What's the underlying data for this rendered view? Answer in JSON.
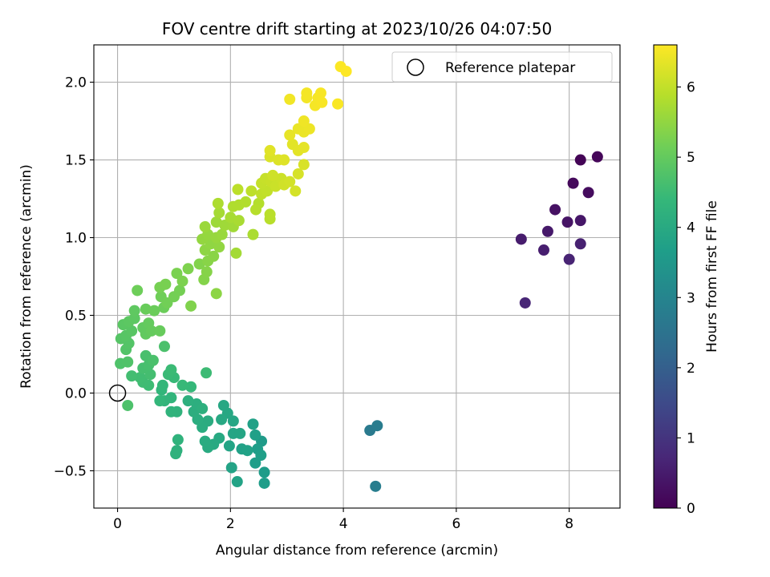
{
  "chart_data": {
    "type": "scatter",
    "title": "FOV centre drift starting at 2023/10/26 04:07:50",
    "xlabel": "Angular distance from reference (arcmin)",
    "ylabel": "Rotation from reference (arcmin)",
    "xlim": [
      -0.42,
      8.9
    ],
    "ylim": [
      -0.74,
      2.24
    ],
    "xticks": [
      0,
      2,
      4,
      6,
      8
    ],
    "xtick_labels": [
      "0",
      "2",
      "4",
      "6",
      "8"
    ],
    "yticks": [
      -0.5,
      0.0,
      0.5,
      1.0,
      1.5,
      2.0
    ],
    "ytick_labels": [
      "−0.5",
      "0.0",
      "0.5",
      "1.0",
      "1.5",
      "2.0"
    ],
    "grid": true,
    "legend": {
      "position": "top-right",
      "entries": [
        "Reference platepar"
      ]
    },
    "reference_point": {
      "name": "Reference platepar",
      "x": 0.0,
      "y": 0.0,
      "marker": "open-circle"
    },
    "colorbar": {
      "label": "Hours from first FF file",
      "range": [
        0,
        6.6
      ],
      "ticks": [
        0,
        1,
        2,
        3,
        4,
        5,
        6
      ],
      "tick_labels": [
        "0",
        "1",
        "2",
        "3",
        "4",
        "5",
        "6"
      ],
      "colormap": "viridis",
      "stops": [
        "#440154",
        "#482878",
        "#3e4989",
        "#31688e",
        "#26828e",
        "#1f9e89",
        "#35b779",
        "#6ece58",
        "#b5de2b",
        "#fde725"
      ]
    },
    "points": [
      {
        "x": 8.2,
        "y": 1.5,
        "c": 0.05
      },
      {
        "x": 8.5,
        "y": 1.52,
        "c": 0.1
      },
      {
        "x": 8.07,
        "y": 1.35,
        "c": 0.15
      },
      {
        "x": 8.34,
        "y": 1.29,
        "c": 0.2
      },
      {
        "x": 7.75,
        "y": 1.18,
        "c": 0.3
      },
      {
        "x": 7.97,
        "y": 1.1,
        "c": 0.35
      },
      {
        "x": 8.2,
        "y": 1.11,
        "c": 0.4
      },
      {
        "x": 7.62,
        "y": 1.04,
        "c": 0.45
      },
      {
        "x": 7.15,
        "y": 0.99,
        "c": 0.5
      },
      {
        "x": 7.55,
        "y": 0.92,
        "c": 0.55
      },
      {
        "x": 8.2,
        "y": 0.96,
        "c": 0.6
      },
      {
        "x": 8.0,
        "y": 0.86,
        "c": 0.65
      },
      {
        "x": 7.22,
        "y": 0.58,
        "c": 0.7
      },
      {
        "x": 4.47,
        "y": -0.24,
        "c": 2.7
      },
      {
        "x": 4.6,
        "y": -0.21,
        "c": 2.75
      },
      {
        "x": 4.57,
        "y": -0.6,
        "c": 2.8
      },
      {
        "x": 2.55,
        "y": -0.31,
        "c": 3.6
      },
      {
        "x": 2.6,
        "y": -0.51,
        "c": 3.62
      },
      {
        "x": 2.6,
        "y": -0.58,
        "c": 3.64
      },
      {
        "x": 2.44,
        "y": -0.45,
        "c": 3.66
      },
      {
        "x": 2.48,
        "y": -0.36,
        "c": 3.68
      },
      {
        "x": 2.54,
        "y": -0.4,
        "c": 3.7
      },
      {
        "x": 2.44,
        "y": -0.27,
        "c": 3.72
      },
      {
        "x": 2.4,
        "y": -0.2,
        "c": 3.74
      },
      {
        "x": 2.2,
        "y": -0.36,
        "c": 3.76
      },
      {
        "x": 2.3,
        "y": -0.37,
        "c": 3.78
      },
      {
        "x": 2.12,
        "y": -0.57,
        "c": 3.8
      },
      {
        "x": 2.02,
        "y": -0.48,
        "c": 3.82
      },
      {
        "x": 1.98,
        "y": -0.34,
        "c": 3.84
      },
      {
        "x": 2.05,
        "y": -0.26,
        "c": 3.86
      },
      {
        "x": 2.17,
        "y": -0.26,
        "c": 3.88
      },
      {
        "x": 2.05,
        "y": -0.18,
        "c": 3.9
      },
      {
        "x": 1.95,
        "y": -0.13,
        "c": 3.92
      },
      {
        "x": 1.88,
        "y": -0.08,
        "c": 3.94
      },
      {
        "x": 1.84,
        "y": -0.17,
        "c": 3.96
      },
      {
        "x": 1.8,
        "y": -0.29,
        "c": 3.98
      },
      {
        "x": 1.7,
        "y": -0.33,
        "c": 4.0
      },
      {
        "x": 1.6,
        "y": -0.35,
        "c": 4.02
      },
      {
        "x": 1.55,
        "y": -0.31,
        "c": 4.04
      },
      {
        "x": 1.6,
        "y": -0.18,
        "c": 4.06
      },
      {
        "x": 1.5,
        "y": -0.22,
        "c": 4.08
      },
      {
        "x": 1.42,
        "y": -0.17,
        "c": 4.1
      },
      {
        "x": 1.35,
        "y": -0.12,
        "c": 4.12
      },
      {
        "x": 1.4,
        "y": -0.07,
        "c": 4.14
      },
      {
        "x": 1.5,
        "y": -0.1,
        "c": 4.16
      },
      {
        "x": 1.25,
        "y": -0.05,
        "c": 4.18
      },
      {
        "x": 1.05,
        "y": -0.37,
        "c": 4.2
      },
      {
        "x": 1.03,
        "y": -0.39,
        "c": 4.22
      },
      {
        "x": 1.07,
        "y": -0.3,
        "c": 4.24
      },
      {
        "x": 1.05,
        "y": -0.12,
        "c": 4.26
      },
      {
        "x": 0.95,
        "y": -0.12,
        "c": 4.28
      },
      {
        "x": 0.95,
        "y": -0.03,
        "c": 4.3
      },
      {
        "x": 0.83,
        "y": -0.05,
        "c": 4.32
      },
      {
        "x": 0.78,
        "y": 0.02,
        "c": 4.34
      },
      {
        "x": 0.75,
        "y": -0.05,
        "c": 4.36
      },
      {
        "x": 0.8,
        "y": 0.05,
        "c": 4.38
      },
      {
        "x": 1.3,
        "y": 0.04,
        "c": 4.4
      },
      {
        "x": 1.15,
        "y": 0.05,
        "c": 4.42
      },
      {
        "x": 1.0,
        "y": 0.1,
        "c": 4.44
      },
      {
        "x": 0.9,
        "y": 0.12,
        "c": 4.46
      },
      {
        "x": 0.95,
        "y": 0.15,
        "c": 4.48
      },
      {
        "x": 1.57,
        "y": 0.13,
        "c": 4.5
      },
      {
        "x": 0.55,
        "y": 0.05,
        "c": 4.52
      },
      {
        "x": 0.45,
        "y": 0.07,
        "c": 4.54
      },
      {
        "x": 0.4,
        "y": 0.1,
        "c": 4.56
      },
      {
        "x": 0.25,
        "y": 0.11,
        "c": 4.58
      },
      {
        "x": 0.58,
        "y": 0.12,
        "c": 4.6
      },
      {
        "x": 0.45,
        "y": 0.16,
        "c": 4.62
      },
      {
        "x": 0.55,
        "y": 0.18,
        "c": 4.64
      },
      {
        "x": 0.5,
        "y": 0.24,
        "c": 4.66
      },
      {
        "x": 0.63,
        "y": 0.21,
        "c": 4.68
      },
      {
        "x": 0.83,
        "y": 0.3,
        "c": 4.7
      },
      {
        "x": 0.18,
        "y": -0.08,
        "c": 4.72
      },
      {
        "x": 0.05,
        "y": 0.19,
        "c": 4.74
      },
      {
        "x": 0.18,
        "y": 0.2,
        "c": 4.76
      },
      {
        "x": 0.15,
        "y": 0.28,
        "c": 4.78
      },
      {
        "x": 0.2,
        "y": 0.32,
        "c": 4.8
      },
      {
        "x": 0.06,
        "y": 0.35,
        "c": 4.82
      },
      {
        "x": 0.15,
        "y": 0.37,
        "c": 4.84
      },
      {
        "x": 0.25,
        "y": 0.4,
        "c": 4.86
      },
      {
        "x": 0.1,
        "y": 0.44,
        "c": 4.88
      },
      {
        "x": 0.2,
        "y": 0.46,
        "c": 4.9
      },
      {
        "x": 0.3,
        "y": 0.48,
        "c": 4.92
      },
      {
        "x": 0.3,
        "y": 0.53,
        "c": 4.94
      },
      {
        "x": 0.45,
        "y": 0.42,
        "c": 4.96
      },
      {
        "x": 0.5,
        "y": 0.38,
        "c": 4.98
      },
      {
        "x": 0.55,
        "y": 0.45,
        "c": 5.0
      },
      {
        "x": 0.6,
        "y": 0.4,
        "c": 5.02
      },
      {
        "x": 0.75,
        "y": 0.4,
        "c": 5.04
      },
      {
        "x": 0.5,
        "y": 0.54,
        "c": 5.06
      },
      {
        "x": 0.65,
        "y": 0.53,
        "c": 5.08
      },
      {
        "x": 0.82,
        "y": 0.55,
        "c": 5.1
      },
      {
        "x": 0.35,
        "y": 0.66,
        "c": 5.12
      },
      {
        "x": 0.77,
        "y": 0.62,
        "c": 5.14
      },
      {
        "x": 0.88,
        "y": 0.58,
        "c": 5.16
      },
      {
        "x": 1.0,
        "y": 0.62,
        "c": 5.18
      },
      {
        "x": 1.1,
        "y": 0.66,
        "c": 5.2
      },
      {
        "x": 0.75,
        "y": 0.68,
        "c": 5.22
      },
      {
        "x": 0.85,
        "y": 0.7,
        "c": 5.24
      },
      {
        "x": 1.05,
        "y": 0.77,
        "c": 5.26
      },
      {
        "x": 1.15,
        "y": 0.72,
        "c": 5.28
      },
      {
        "x": 1.25,
        "y": 0.8,
        "c": 5.3
      },
      {
        "x": 1.3,
        "y": 0.56,
        "c": 5.32
      },
      {
        "x": 1.45,
        "y": 0.83,
        "c": 5.34
      },
      {
        "x": 1.53,
        "y": 0.73,
        "c": 5.36
      },
      {
        "x": 1.58,
        "y": 0.78,
        "c": 5.38
      },
      {
        "x": 1.6,
        "y": 0.85,
        "c": 5.4
      },
      {
        "x": 1.7,
        "y": 0.88,
        "c": 5.42
      },
      {
        "x": 1.75,
        "y": 0.64,
        "c": 5.44
      },
      {
        "x": 1.55,
        "y": 0.92,
        "c": 5.46
      },
      {
        "x": 1.65,
        "y": 0.96,
        "c": 5.48
      },
      {
        "x": 1.8,
        "y": 0.94,
        "c": 5.5
      },
      {
        "x": 1.5,
        "y": 0.99,
        "c": 5.52
      },
      {
        "x": 1.6,
        "y": 1.02,
        "c": 5.54
      },
      {
        "x": 1.75,
        "y": 1.0,
        "c": 5.56
      },
      {
        "x": 1.85,
        "y": 1.02,
        "c": 5.58
      },
      {
        "x": 1.55,
        "y": 1.07,
        "c": 5.6
      },
      {
        "x": 1.75,
        "y": 1.1,
        "c": 5.62
      },
      {
        "x": 1.9,
        "y": 1.08,
        "c": 5.64
      },
      {
        "x": 2.05,
        "y": 1.07,
        "c": 5.66
      },
      {
        "x": 2.1,
        "y": 0.9,
        "c": 5.68
      },
      {
        "x": 1.8,
        "y": 1.16,
        "c": 5.7
      },
      {
        "x": 2.0,
        "y": 1.13,
        "c": 5.72
      },
      {
        "x": 2.15,
        "y": 1.11,
        "c": 5.74
      },
      {
        "x": 2.4,
        "y": 1.02,
        "c": 5.76
      },
      {
        "x": 1.78,
        "y": 1.22,
        "c": 5.78
      },
      {
        "x": 2.05,
        "y": 1.2,
        "c": 5.8
      },
      {
        "x": 2.15,
        "y": 1.21,
        "c": 5.82
      },
      {
        "x": 2.27,
        "y": 1.23,
        "c": 5.84
      },
      {
        "x": 2.5,
        "y": 1.22,
        "c": 5.86
      },
      {
        "x": 2.45,
        "y": 1.18,
        "c": 5.88
      },
      {
        "x": 2.7,
        "y": 1.12,
        "c": 5.9
      },
      {
        "x": 2.7,
        "y": 1.15,
        "c": 5.92
      },
      {
        "x": 2.13,
        "y": 1.31,
        "c": 5.94
      },
      {
        "x": 2.37,
        "y": 1.3,
        "c": 5.96
      },
      {
        "x": 2.55,
        "y": 1.28,
        "c": 5.98
      },
      {
        "x": 2.65,
        "y": 1.3,
        "c": 6.0
      },
      {
        "x": 2.55,
        "y": 1.35,
        "c": 6.02
      },
      {
        "x": 2.62,
        "y": 1.38,
        "c": 6.04
      },
      {
        "x": 2.72,
        "y": 1.36,
        "c": 6.06
      },
      {
        "x": 2.8,
        "y": 1.33,
        "c": 6.08
      },
      {
        "x": 2.9,
        "y": 1.38,
        "c": 6.1
      },
      {
        "x": 2.75,
        "y": 1.4,
        "c": 6.12
      },
      {
        "x": 2.95,
        "y": 1.34,
        "c": 6.14
      },
      {
        "x": 3.05,
        "y": 1.36,
        "c": 6.16
      },
      {
        "x": 3.15,
        "y": 1.3,
        "c": 6.18
      },
      {
        "x": 3.2,
        "y": 1.41,
        "c": 6.2
      },
      {
        "x": 3.3,
        "y": 1.47,
        "c": 6.22
      },
      {
        "x": 2.7,
        "y": 1.52,
        "c": 6.24
      },
      {
        "x": 2.85,
        "y": 1.5,
        "c": 6.26
      },
      {
        "x": 2.95,
        "y": 1.5,
        "c": 6.28
      },
      {
        "x": 2.7,
        "y": 1.56,
        "c": 6.3
      },
      {
        "x": 3.1,
        "y": 1.6,
        "c": 6.32
      },
      {
        "x": 3.2,
        "y": 1.56,
        "c": 6.34
      },
      {
        "x": 3.3,
        "y": 1.58,
        "c": 6.36
      },
      {
        "x": 3.05,
        "y": 1.66,
        "c": 6.38
      },
      {
        "x": 3.2,
        "y": 1.7,
        "c": 6.4
      },
      {
        "x": 3.3,
        "y": 1.68,
        "c": 6.42
      },
      {
        "x": 3.4,
        "y": 1.7,
        "c": 6.44
      },
      {
        "x": 3.3,
        "y": 1.75,
        "c": 6.46
      },
      {
        "x": 3.05,
        "y": 1.89,
        "c": 6.48
      },
      {
        "x": 3.35,
        "y": 1.9,
        "c": 6.5
      },
      {
        "x": 3.35,
        "y": 1.93,
        "c": 6.51
      },
      {
        "x": 3.5,
        "y": 1.85,
        "c": 6.52
      },
      {
        "x": 3.55,
        "y": 1.9,
        "c": 6.53
      },
      {
        "x": 3.6,
        "y": 1.93,
        "c": 6.54
      },
      {
        "x": 3.62,
        "y": 1.87,
        "c": 6.55
      },
      {
        "x": 3.9,
        "y": 1.86,
        "c": 6.56
      },
      {
        "x": 3.95,
        "y": 2.1,
        "c": 6.58
      },
      {
        "x": 4.05,
        "y": 2.07,
        "c": 6.6
      }
    ]
  }
}
